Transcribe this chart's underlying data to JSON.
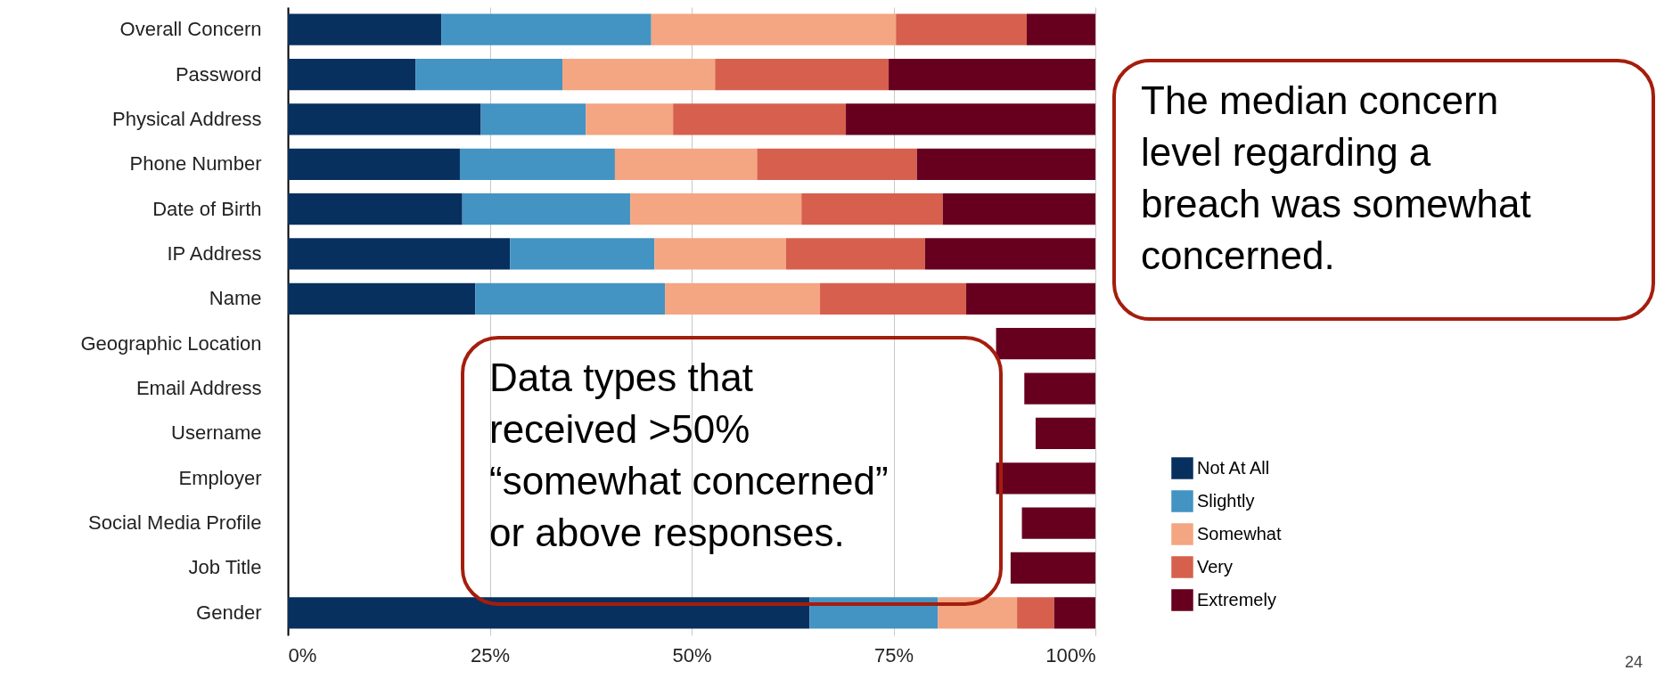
{
  "chart_data": {
    "type": "bar",
    "orientation": "horizontal",
    "stacked": true,
    "categories": [
      "Overall Concern",
      "Password",
      "Physical Address",
      "Phone Number",
      "Date of Birth",
      "IP Address",
      "Name",
      "Geographic Location",
      "Email Address",
      "Username",
      "Employer",
      "Social Media Profile",
      "Job Title",
      "Gender"
    ],
    "series": [
      {
        "name": "Not At All",
        "color": "#08305e",
        "values": [
          19.0,
          15.8,
          23.9,
          21.3,
          21.6,
          27.5,
          23.2,
          null,
          null,
          null,
          null,
          null,
          null,
          64.6
        ]
      },
      {
        "name": "Slightly",
        "color": "#4393c3",
        "values": [
          26.0,
          18.2,
          13.0,
          19.2,
          20.8,
          17.9,
          23.5,
          null,
          null,
          null,
          null,
          null,
          null,
          15.9
        ]
      },
      {
        "name": "Somewhat",
        "color": "#f4a582",
        "values": [
          30.3,
          18.9,
          10.8,
          17.6,
          21.2,
          16.3,
          19.2,
          null,
          null,
          null,
          null,
          null,
          null,
          9.8
        ]
      },
      {
        "name": "Very",
        "color": "#d6604d",
        "values": [
          16.2,
          21.5,
          21.4,
          19.8,
          17.5,
          17.2,
          18.1,
          null,
          null,
          null,
          null,
          null,
          null,
          4.6
        ]
      },
      {
        "name": "Extremely",
        "color": "#67001f",
        "values": [
          8.5,
          25.6,
          30.9,
          22.1,
          18.9,
          21.1,
          16.0,
          12.3,
          8.8,
          7.4,
          12.3,
          9.1,
          10.5,
          5.1
        ],
        "base": [
          91.5,
          74.4,
          69.1,
          77.9,
          81.1,
          78.9,
          84.0,
          87.7,
          91.2,
          92.6,
          87.7,
          90.9,
          89.5,
          94.9
        ]
      }
    ],
    "xlim": [
      0,
      100
    ],
    "xticks": [
      {
        "value": 0,
        "label": "0%"
      },
      {
        "value": 25,
        "label": "25%"
      },
      {
        "value": 50,
        "label": "50%"
      },
      {
        "value": 75,
        "label": "75%"
      },
      {
        "value": 100,
        "label": "100%"
      }
    ],
    "grid": "x",
    "legend": "right",
    "annotations": [
      "The median concern level regarding a breach was somewhat concerned.",
      "Data types that received >50% “somewhat concerned” or above responses.",
      "24"
    ]
  }
}
